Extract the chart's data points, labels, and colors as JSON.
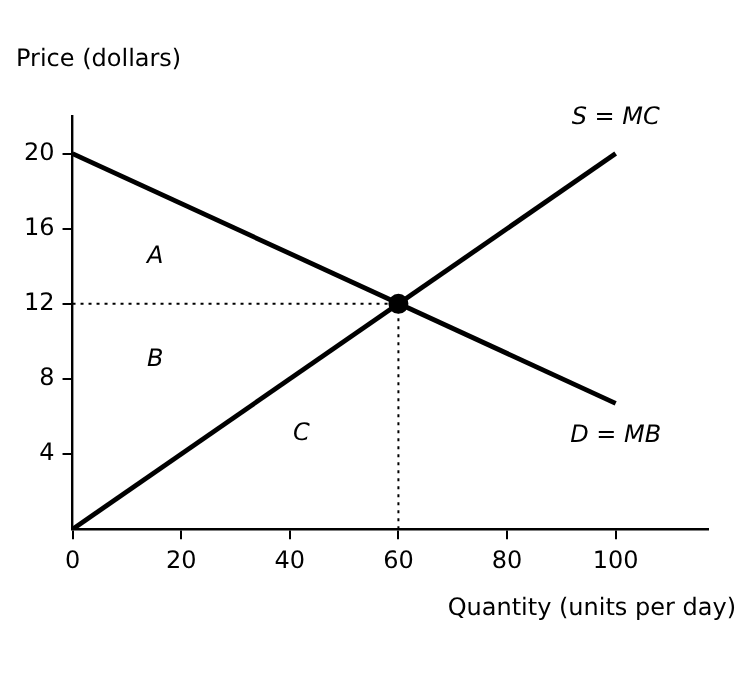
{
  "chart_data": {
    "type": "line",
    "xlabel": "Quantity (units per day)",
    "ylabel": "Price (dollars)",
    "xlim": [
      0,
      117
    ],
    "ylim": [
      0,
      22
    ],
    "xticks": [
      0,
      20,
      40,
      60,
      80,
      100
    ],
    "yticks": [
      4,
      8,
      12,
      16,
      20
    ],
    "grid": false,
    "legend": false,
    "series": [
      {
        "name": "S = MC",
        "color": "#000000",
        "x": [
          0,
          100
        ],
        "values": [
          0,
          20
        ],
        "line_style": "solid",
        "marker": "none"
      },
      {
        "name": "D = MB",
        "color": "#000000",
        "x": [
          0,
          100
        ],
        "values": [
          20,
          6.7
        ],
        "line_style": "solid",
        "marker": "none"
      },
      {
        "color": "#000000",
        "x": [
          0,
          60
        ],
        "values": [
          12,
          12
        ],
        "line_style": "dotted",
        "marker": "none"
      },
      {
        "color": "#000000",
        "x": [
          60,
          60
        ],
        "values": [
          0,
          12
        ],
        "line_style": "dotted",
        "marker": "none"
      },
      {
        "type": "scatter",
        "color": "#000000",
        "x": [
          60
        ],
        "values": [
          12
        ],
        "marker": "circle"
      }
    ],
    "annotations": [
      "A",
      "B",
      "C"
    ]
  }
}
